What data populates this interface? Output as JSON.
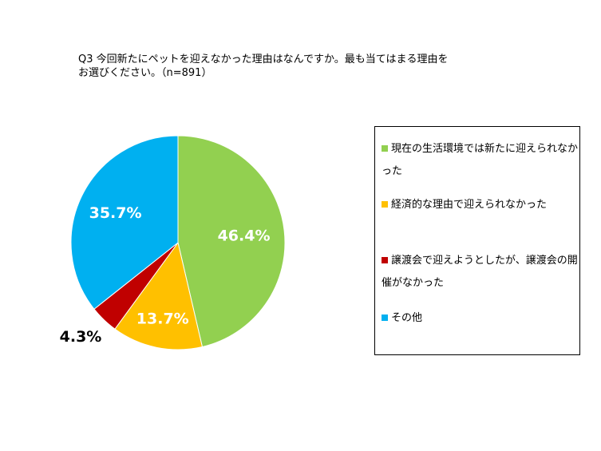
{
  "chart_data": {
    "type": "pie",
    "title": "Q3 今回新たにペットを迎えなかった理由はなんですか。最も当てはまる理由を\nお選びください。（n=891）",
    "slices": [
      {
        "label": "現在の生活環境では新たに迎えられなかった",
        "value": 46.4,
        "display": "46.4%",
        "color": "#92d050"
      },
      {
        "label": "経済的な理由で迎えられなかった",
        "value": 13.7,
        "display": "13.7%",
        "color": "#ffc000"
      },
      {
        "label": "譲渡会で迎えようとしたが、譲渡会の開催がなかった",
        "value": 4.3,
        "display": "4.3%",
        "color": "#c00000"
      },
      {
        "label": "その他",
        "value": 35.7,
        "display": "35.7%",
        "color": "#00b0f0"
      }
    ],
    "legend_position": "right"
  }
}
